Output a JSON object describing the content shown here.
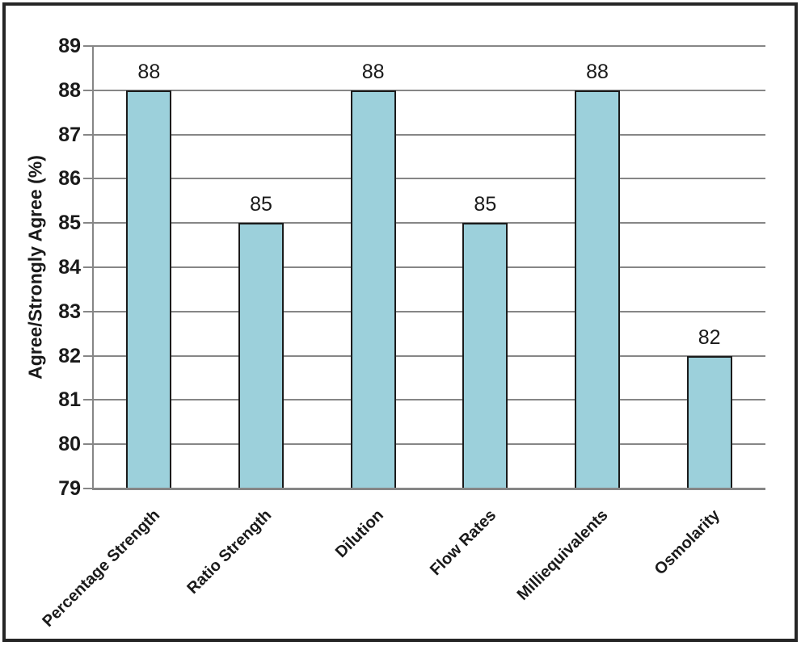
{
  "chart_data": {
    "type": "bar",
    "title": "",
    "xlabel": "",
    "ylabel": "Agree/Strongly Agree (%)",
    "categories": [
      "Percentage Strength",
      "Ratio Strength",
      "Dilution",
      "Flow Rates",
      "Milliequivalents",
      "Osmolarity"
    ],
    "values": [
      88,
      85,
      88,
      85,
      88,
      82
    ],
    "ylim": [
      79,
      89
    ],
    "yticks": [
      79,
      80,
      81,
      82,
      83,
      84,
      85,
      86,
      87,
      88,
      89
    ],
    "grid": true,
    "legend": false,
    "data_labels_shown": true,
    "colors": {
      "bar_fill": "#9CD0DB",
      "bar_border": "#1B1B1B",
      "gridline": "#868686",
      "axis": "#868686",
      "text": "#1A1A1A",
      "frame_border": "#262626",
      "background": "#FFFFFF"
    }
  }
}
